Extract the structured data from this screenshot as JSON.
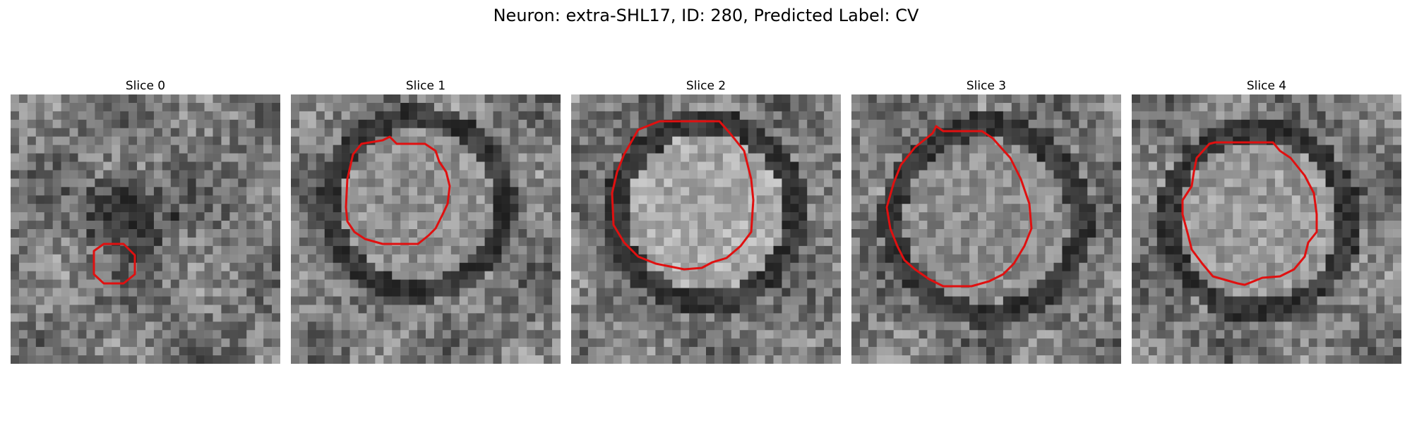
{
  "figure": {
    "title": "Neuron: extra-SHL17, ID: 280, Predicted Label: CV"
  },
  "panels": [
    {
      "title": "Slice 0",
      "contour_color": "#e01010"
    },
    {
      "title": "Slice 1",
      "contour_color": "#e01010"
    },
    {
      "title": "Slice 2",
      "contour_color": "#e01010"
    },
    {
      "title": "Slice 3",
      "contour_color": "#e01010"
    },
    {
      "title": "Slice 4",
      "contour_color": "#e01010"
    }
  ],
  "colormap": "grayscale"
}
